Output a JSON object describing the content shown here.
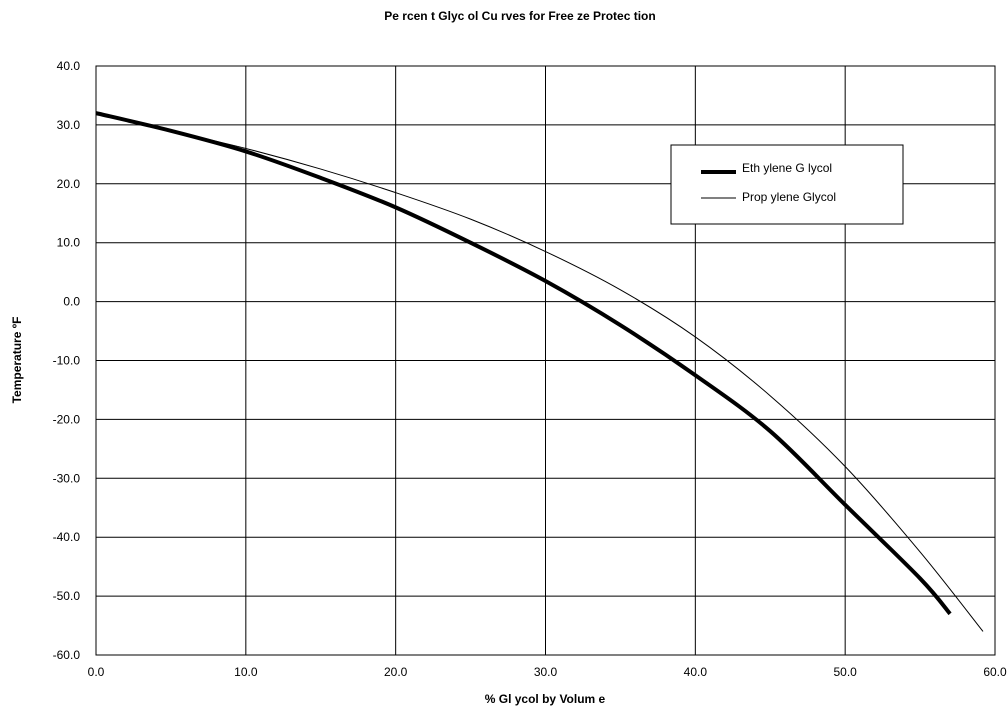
{
  "chart_data": {
    "type": "line",
    "title": "Pe rcen t Glyc ol Cu rves  for Free ze  Protec tion",
    "xlabel": "% Gl ycol  by Volum e",
    "ylabel": "Temperature ºF",
    "xlim": [
      0,
      60
    ],
    "ylim": [
      -60,
      40
    ],
    "x_ticks": [
      "0.0",
      "10.0",
      "20.0",
      "30.0",
      "40.0",
      "50.0",
      "60.0"
    ],
    "y_ticks": [
      "40.0",
      "30.0",
      "20.0",
      "10.0",
      "0.0",
      "-10.0",
      "-20.0",
      "-30.0",
      "-40.0",
      "-50.0",
      "-60.0"
    ],
    "grid": true,
    "legend_position": "top-right",
    "series": [
      {
        "name": "Eth ylene G lycol",
        "color": "#000000",
        "style": "thick",
        "x": [
          0,
          5,
          10,
          15,
          20,
          25,
          30,
          35,
          40,
          45,
          50,
          55,
          57
        ],
        "y": [
          32,
          29,
          25.5,
          21,
          16,
          10,
          3.5,
          -4,
          -12.5,
          -22,
          -34.5,
          -47,
          -53
        ]
      },
      {
        "name": "Prop ylene  Glycol",
        "color": "#000000",
        "style": "thin",
        "x": [
          0,
          5,
          10,
          15,
          20,
          25,
          30,
          35,
          40,
          45,
          50,
          55,
          59.2
        ],
        "y": [
          32,
          29,
          26,
          22.5,
          18.5,
          14,
          8.5,
          2,
          -6,
          -16,
          -28,
          -42.5,
          -56
        ]
      }
    ]
  }
}
